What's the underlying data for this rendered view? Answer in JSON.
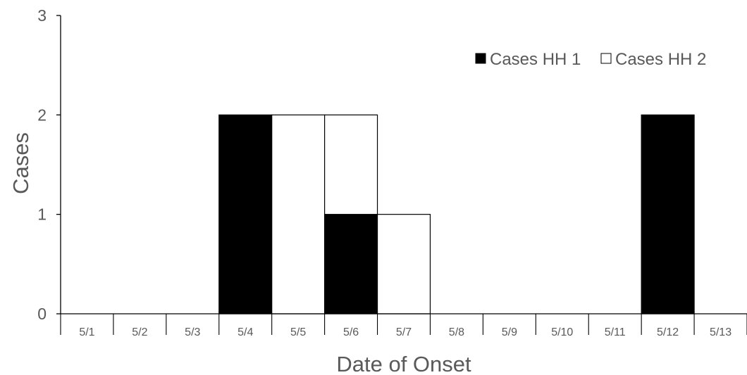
{
  "chart_data": {
    "type": "bar",
    "stacked": true,
    "categories": [
      "5/1",
      "5/2",
      "5/3",
      "5/4",
      "5/5",
      "5/6",
      "5/7",
      "5/8",
      "5/9",
      "5/10",
      "5/11",
      "5/12",
      "5/13"
    ],
    "series": [
      {
        "name": "Cases HH 1",
        "color": "#000000",
        "values": [
          0,
          0,
          0,
          2,
          0,
          1,
          0,
          0,
          0,
          0,
          0,
          2,
          0
        ]
      },
      {
        "name": "Cases HH 2",
        "color": "#ffffff",
        "values": [
          0,
          0,
          0,
          0,
          2,
          1,
          1,
          0,
          0,
          0,
          0,
          0,
          0
        ]
      }
    ],
    "xlabel": "Date of Onset",
    "ylabel": "Cases",
    "ylim": [
      0,
      3
    ],
    "yticks": [
      0,
      1,
      2,
      3
    ],
    "legend_position": "top-right",
    "grid": false
  }
}
